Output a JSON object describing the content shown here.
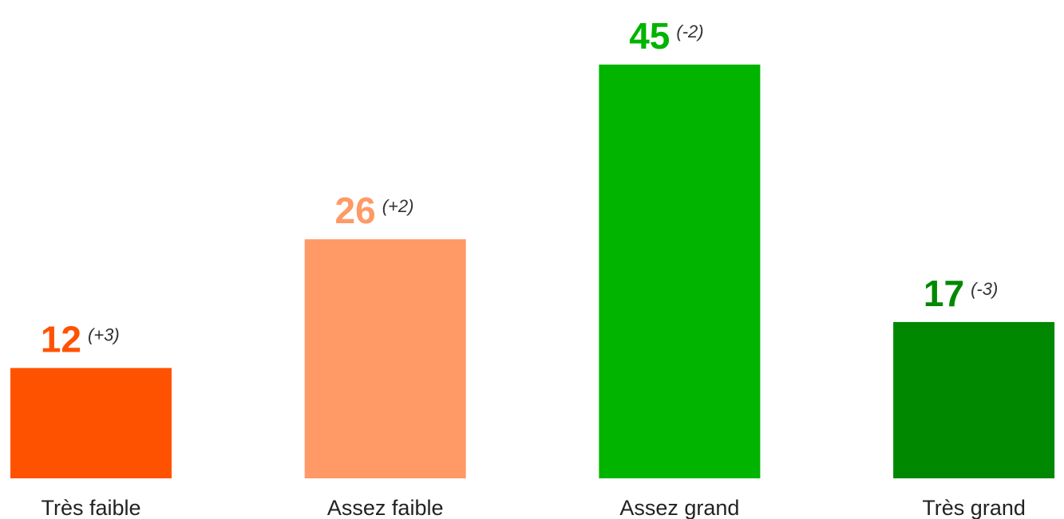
{
  "chart_data": {
    "type": "bar",
    "categories": [
      "Très faible",
      "Assez faible",
      "Assez grand",
      "Très grand"
    ],
    "values": [
      12,
      26,
      45,
      17
    ],
    "changes": [
      "(+3)",
      "(+2)",
      "(-2)",
      "(-3)"
    ],
    "colors": [
      "#ff5200",
      "#ff9966",
      "#00b400",
      "#008800"
    ],
    "ylim": [
      0,
      45
    ]
  }
}
